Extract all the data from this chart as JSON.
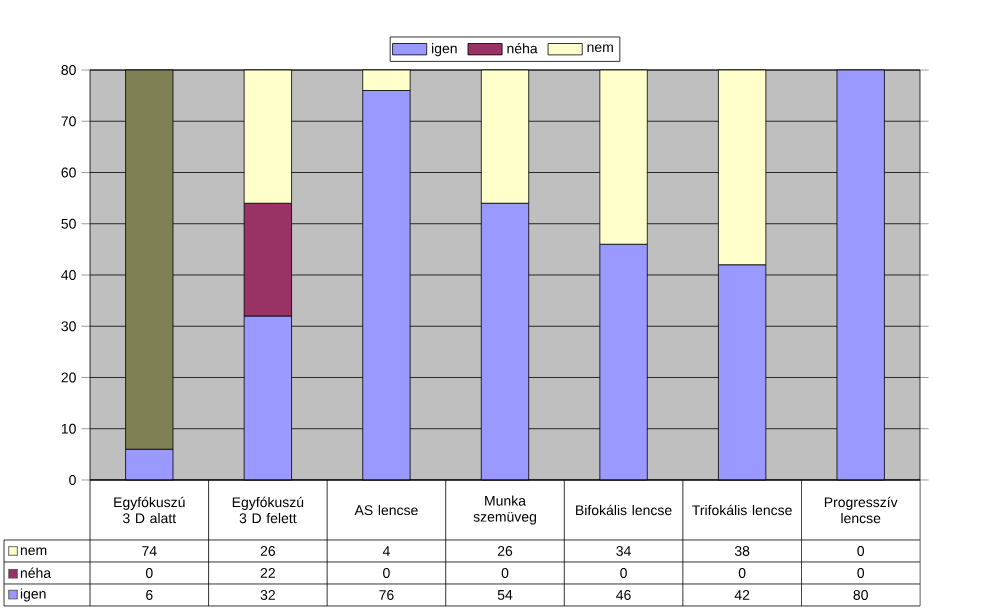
{
  "chart_data": {
    "type": "bar",
    "stacked": true,
    "categories": [
      "Egyfókuszú 3 D alatt",
      "Egyfókuszú 3 D felett",
      "AS lencse",
      "Munka szemüveg",
      "Bifokális lencse",
      "Trifokális lencse",
      "Progresszív lencse"
    ],
    "series": [
      {
        "name": "igen",
        "color": "#9999ff",
        "values": [
          6,
          32,
          76,
          54,
          46,
          42,
          80
        ]
      },
      {
        "name": "néha",
        "color": "#993366",
        "values": [
          0,
          22,
          0,
          0,
          0,
          0,
          0
        ]
      },
      {
        "name": "nem",
        "color": "#ffffcc",
        "colors": [
          "#808055",
          "#ffffcc",
          "#ffffcc",
          "#ffffcc",
          "#ffffcc",
          "#ffffcc",
          "#ffffcc"
        ],
        "values": [
          74,
          26,
          4,
          26,
          34,
          38,
          0
        ]
      }
    ],
    "ylim": [
      0,
      80
    ],
    "yticks": [
      0,
      10,
      20,
      30,
      40,
      50,
      60,
      70,
      80
    ],
    "grid": "y",
    "legend": "top",
    "data_labels": true
  }
}
